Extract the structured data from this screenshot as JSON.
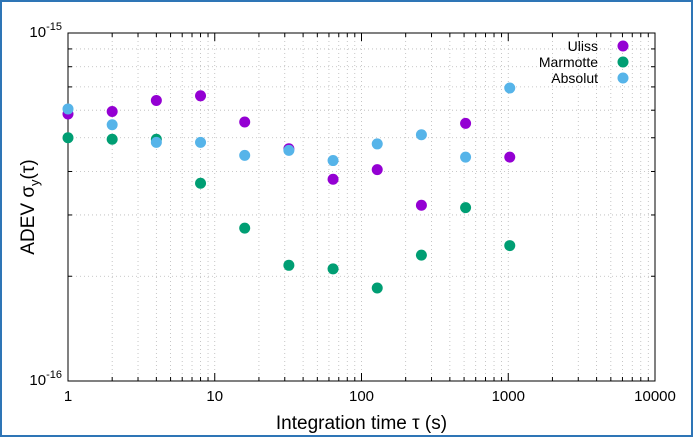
{
  "chart_data": {
    "type": "scatter",
    "xscale": "log",
    "yscale": "log",
    "xlim": [
      1,
      10000
    ],
    "ylim": [
      1e-16,
      1e-15
    ],
    "xlabel": "Integration time τ (s)",
    "ylabel": "ADEV σ_y(τ)",
    "ylabel_parts": {
      "main": "ADEV σ",
      "sub": "y",
      "tail": "(τ)"
    },
    "grid": true,
    "legend_position": "top-right",
    "x_ticks": [
      {
        "value": 1,
        "label": "1"
      },
      {
        "value": 10,
        "label": "10"
      },
      {
        "value": 100,
        "label": "100"
      },
      {
        "value": 1000,
        "label": "1000"
      },
      {
        "value": 10000,
        "label": "10000"
      }
    ],
    "y_ticks": [
      {
        "value": 1e-16,
        "mantissa": "10",
        "exponent": "-16"
      },
      {
        "value": 1e-15,
        "mantissa": "10",
        "exponent": "-15"
      }
    ],
    "series": [
      {
        "name": "Uliss",
        "color": "#9400d3",
        "points": [
          {
            "x": 1,
            "y": 5.85e-16
          },
          {
            "x": 2,
            "y": 5.95e-16
          },
          {
            "x": 4,
            "y": 6.4e-16
          },
          {
            "x": 8,
            "y": 6.6e-16
          },
          {
            "x": 16,
            "y": 5.55e-16
          },
          {
            "x": 32,
            "y": 4.65e-16
          },
          {
            "x": 64,
            "y": 3.8e-16
          },
          {
            "x": 128,
            "y": 4.05e-16
          },
          {
            "x": 256,
            "y": 3.2e-16
          },
          {
            "x": 512,
            "y": 5.5e-16
          },
          {
            "x": 1024,
            "y": 4.4e-16
          }
        ]
      },
      {
        "name": "Marmotte",
        "color": "#009e73",
        "points": [
          {
            "x": 1,
            "y": 5e-16
          },
          {
            "x": 2,
            "y": 4.95e-16
          },
          {
            "x": 4,
            "y": 4.95e-16
          },
          {
            "x": 8,
            "y": 3.7e-16
          },
          {
            "x": 16,
            "y": 2.75e-16
          },
          {
            "x": 32,
            "y": 2.15e-16
          },
          {
            "x": 64,
            "y": 2.1e-16
          },
          {
            "x": 128,
            "y": 1.85e-16
          },
          {
            "x": 256,
            "y": 2.3e-16
          },
          {
            "x": 512,
            "y": 3.15e-16
          },
          {
            "x": 1024,
            "y": 2.45e-16
          }
        ]
      },
      {
        "name": "Absolut",
        "color": "#56b4e9",
        "points": [
          {
            "x": 1,
            "y": 6.05e-16
          },
          {
            "x": 2,
            "y": 5.45e-16
          },
          {
            "x": 4,
            "y": 4.85e-16
          },
          {
            "x": 8,
            "y": 4.85e-16
          },
          {
            "x": 16,
            "y": 4.45e-16
          },
          {
            "x": 32,
            "y": 4.6e-16
          },
          {
            "x": 64,
            "y": 4.3e-16
          },
          {
            "x": 128,
            "y": 4.8e-16
          },
          {
            "x": 256,
            "y": 5.1e-16
          },
          {
            "x": 512,
            "y": 4.4e-16
          },
          {
            "x": 1024,
            "y": 6.95e-16
          }
        ]
      }
    ]
  }
}
